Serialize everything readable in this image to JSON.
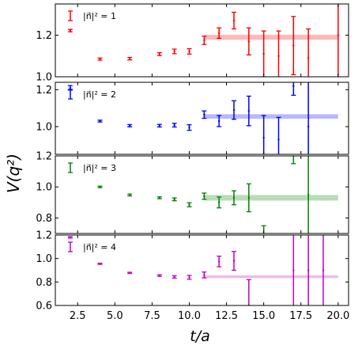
{
  "figure": {
    "ylabel": "V(q²)",
    "xlabel": "t/a"
  },
  "chart_data": [
    {
      "type": "scatter",
      "legend": "|n⃗|² = 1",
      "color": "#ff0000",
      "x_ticks": [
        "2.5",
        "5.0",
        "7.5",
        "10.0",
        "12.5",
        "15.0",
        "17.5",
        "20.0"
      ],
      "y_ticks": [
        1.0,
        1.2
      ],
      "y_tick_labels": [
        "1.0",
        "1.2"
      ],
      "xlim": [
        1.0,
        20.7
      ],
      "ylim": [
        1.0,
        1.35
      ],
      "fit_band": {
        "x_start": 11,
        "x_end": 20,
        "center": 1.19,
        "half_width": 0.012
      },
      "points": [
        {
          "x": 2,
          "y": 1.222,
          "err": 0.006
        },
        {
          "x": 4,
          "y": 1.085,
          "err": 0.005
        },
        {
          "x": 6,
          "y": 1.087,
          "err": 0.006
        },
        {
          "x": 8,
          "y": 1.109,
          "err": 0.007
        },
        {
          "x": 9,
          "y": 1.122,
          "err": 0.011
        },
        {
          "x": 10,
          "y": 1.122,
          "err": 0.013
        },
        {
          "x": 11,
          "y": 1.175,
          "err": 0.02
        },
        {
          "x": 12,
          "y": 1.21,
          "err": 0.025
        },
        {
          "x": 13,
          "y": 1.27,
          "err": 0.04
        },
        {
          "x": 14,
          "y": 1.17,
          "err": 0.065
        },
        {
          "x": 15,
          "y": 1.11,
          "err": 0.11
        },
        {
          "x": 16,
          "y": 1.1,
          "err": 0.12
        },
        {
          "x": 17,
          "y": 1.15,
          "err": 0.14
        },
        {
          "x": 18,
          "y": 1.09,
          "err": 0.14
        },
        {
          "x": 20,
          "y": 1.2,
          "err": 0.35
        }
      ]
    },
    {
      "type": "scatter",
      "legend": "|n⃗|² = 2",
      "color": "#0000ff",
      "x_ticks": [
        "2.5",
        "5.0",
        "7.5",
        "10.0",
        "12.5",
        "15.0",
        "17.5",
        "20.0"
      ],
      "y_ticks": [
        1.0,
        1.2
      ],
      "y_tick_labels": [
        "1.0",
        "1.2"
      ],
      "xlim": [
        1.0,
        20.7
      ],
      "ylim": [
        0.85,
        1.24
      ],
      "fit_band": {
        "x_start": 11,
        "x_end": 20,
        "center": 1.055,
        "half_width": 0.012
      },
      "points": [
        {
          "x": 2,
          "y": 1.21,
          "err": 0.012
        },
        {
          "x": 4,
          "y": 1.03,
          "err": 0.005
        },
        {
          "x": 6,
          "y": 1.005,
          "err": 0.006
        },
        {
          "x": 8,
          "y": 1.005,
          "err": 0.007
        },
        {
          "x": 9,
          "y": 1.008,
          "err": 0.01
        },
        {
          "x": 10,
          "y": 0.995,
          "err": 0.015
        },
        {
          "x": 11,
          "y": 1.065,
          "err": 0.02
        },
        {
          "x": 12,
          "y": 1.03,
          "err": 0.03
        },
        {
          "x": 13,
          "y": 1.09,
          "err": 0.05
        },
        {
          "x": 14,
          "y": 1.085,
          "err": 0.08
        },
        {
          "x": 15,
          "y": 0.94,
          "err": 0.12
        },
        {
          "x": 16,
          "y": 0.93,
          "err": 0.12
        },
        {
          "x": 17,
          "y": 1.22,
          "err": 0.05
        },
        {
          "x": 18,
          "y": 1.0,
          "err": 0.3
        }
      ]
    },
    {
      "type": "scatter",
      "legend": "|n⃗|² = 3",
      "color": "#008000",
      "x_ticks": [
        "2.5",
        "5.0",
        "7.5",
        "10.0",
        "12.5",
        "15.0",
        "17.5",
        "20.0"
      ],
      "y_ticks": [
        0.8,
        1.0,
        1.2
      ],
      "y_tick_labels": [
        "0.8",
        "1.0",
        "1.2"
      ],
      "xlim": [
        1.0,
        20.7
      ],
      "ylim": [
        0.7,
        1.2
      ],
      "fit_band": {
        "x_start": 11,
        "x_end": 20,
        "center": 0.93,
        "half_width": 0.018
      },
      "points": [
        {
          "x": 4,
          "y": 1.0,
          "err": 0.005
        },
        {
          "x": 6,
          "y": 0.948,
          "err": 0.006
        },
        {
          "x": 8,
          "y": 0.93,
          "err": 0.006
        },
        {
          "x": 9,
          "y": 0.92,
          "err": 0.009
        },
        {
          "x": 10,
          "y": 0.885,
          "err": 0.013
        },
        {
          "x": 11,
          "y": 0.94,
          "err": 0.02
        },
        {
          "x": 12,
          "y": 0.9,
          "err": 0.035
        },
        {
          "x": 13,
          "y": 0.93,
          "err": 0.045
        },
        {
          "x": 14,
          "y": 0.93,
          "err": 0.09
        },
        {
          "x": 15,
          "y": 0.7,
          "err": 0.05
        },
        {
          "x": 17,
          "y": 1.2,
          "err": 0.05
        },
        {
          "x": 18,
          "y": 0.95,
          "err": 0.4
        }
      ]
    },
    {
      "type": "scatter",
      "legend": "|n⃗|² = 4",
      "color": "#bf00bf",
      "x_ticks": [
        "2.5",
        "5.0",
        "7.5",
        "10.0",
        "12.5",
        "15.0",
        "17.5",
        "20.0"
      ],
      "y_ticks": [
        0.6,
        0.8,
        1.0,
        1.2
      ],
      "y_tick_labels": [
        "0.6",
        "0.8",
        "1.0",
        "1.2"
      ],
      "xlim": [
        1.0,
        20.7
      ],
      "ylim": [
        0.6,
        1.2
      ],
      "fit_band": {
        "x_start": 11,
        "x_end": 20,
        "center": 0.845,
        "half_width": 0.011
      },
      "points": [
        {
          "x": 2,
          "y": 1.18,
          "err": 0.006
        },
        {
          "x": 4,
          "y": 0.955,
          "err": 0.005
        },
        {
          "x": 6,
          "y": 0.878,
          "err": 0.005
        },
        {
          "x": 8,
          "y": 0.855,
          "err": 0.007
        },
        {
          "x": 9,
          "y": 0.843,
          "err": 0.01
        },
        {
          "x": 10,
          "y": 0.84,
          "err": 0.016
        },
        {
          "x": 11,
          "y": 0.86,
          "err": 0.025
        },
        {
          "x": 12,
          "y": 0.975,
          "err": 0.045
        },
        {
          "x": 13,
          "y": 0.98,
          "err": 0.08
        },
        {
          "x": 14,
          "y": 0.6,
          "err": 0.22
        },
        {
          "x": 17,
          "y": 0.9,
          "err": 0.35
        },
        {
          "x": 18,
          "y": 0.9,
          "err": 0.35
        },
        {
          "x": 19,
          "y": 0.9,
          "err": 0.35
        }
      ]
    }
  ]
}
